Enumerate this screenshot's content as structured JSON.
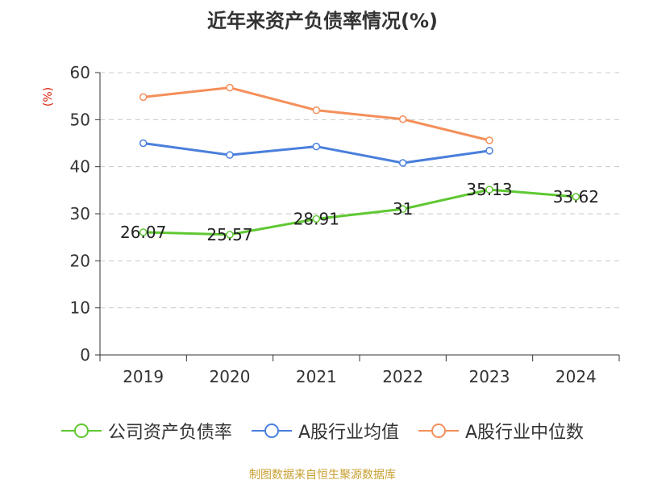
{
  "title": "近年来资产负债率情况(%)",
  "unit_label": "(%)",
  "source": "制图数据来自恒生聚源数据库",
  "colors": {
    "series1": "#5fc832",
    "series2": "#4a7fdc",
    "series3": "#f48f5a",
    "grid": "#c8c8c8",
    "axis": "#333333",
    "unit": "#d81e06",
    "source": "#c8a032"
  },
  "chart_data": {
    "type": "line",
    "categories": [
      "2019",
      "2020",
      "2021",
      "2022",
      "2023",
      "2024"
    ],
    "ylim": [
      0,
      60
    ],
    "yticks": [
      0,
      10,
      20,
      30,
      40,
      50,
      60
    ],
    "grid": true,
    "legend_position": "bottom",
    "series": [
      {
        "name": "公司资产负债率",
        "values": [
          26.07,
          25.57,
          28.91,
          31,
          35.13,
          33.62
        ],
        "labels": [
          "26.07",
          "25.57",
          "28.91",
          "31",
          "35.13",
          "33.62"
        ]
      },
      {
        "name": "A股行业均值",
        "values": [
          45.0,
          42.5,
          44.3,
          40.8,
          43.4,
          null
        ]
      },
      {
        "name": "A股行业中位数",
        "values": [
          54.8,
          56.8,
          52.0,
          50.1,
          45.6,
          null
        ]
      }
    ]
  }
}
